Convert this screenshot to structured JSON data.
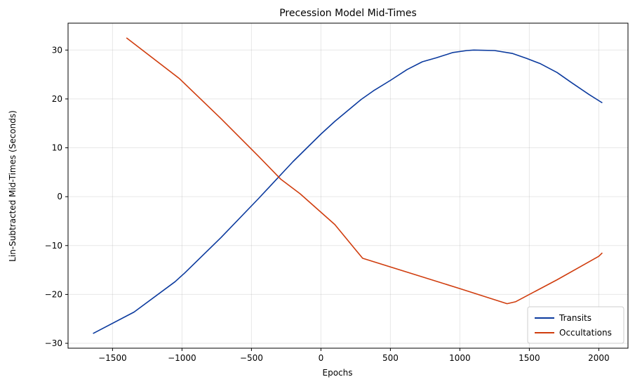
{
  "chart_data": {
    "type": "line",
    "title": "Precession Model Mid-Times",
    "xlabel": "Epochs",
    "ylabel": "Lin-Subtracted Mid-Times (Seconds)",
    "xlim": [
      -1820,
      2210
    ],
    "ylim": [
      -31,
      35.5
    ],
    "xticks": [
      -1500,
      -1000,
      -500,
      0,
      500,
      1000,
      1500,
      2000
    ],
    "yticks": [
      -30,
      -20,
      -10,
      0,
      10,
      20,
      30
    ],
    "xtick_labels": [
      "−1500",
      "−1000",
      "−500",
      "0",
      "500",
      "1000",
      "1500",
      "2000"
    ],
    "ytick_labels": [
      "−30",
      "−20",
      "−10",
      "0",
      "10",
      "20",
      "30"
    ],
    "grid": true,
    "legend_position": "lower-right",
    "series": [
      {
        "name": "Transits",
        "color": "#0b3a9e",
        "x": [
          -1640,
          -1345,
          -1050,
          -980,
          -720,
          -450,
          -200,
          0,
          100,
          290,
          380,
          500,
          620,
          730,
          830,
          950,
          1050,
          1100,
          1250,
          1380,
          1480,
          1580,
          1700,
          1800,
          1930,
          2025
        ],
        "y": [
          -28.0,
          -23.6,
          -17.4,
          -15.6,
          -8.4,
          -0.4,
          7.2,
          12.8,
          15.4,
          19.9,
          21.7,
          23.8,
          26.0,
          27.6,
          28.4,
          29.5,
          29.9,
          30.0,
          29.9,
          29.3,
          28.3,
          27.2,
          25.4,
          23.4,
          20.9,
          19.2
        ]
      },
      {
        "name": "Occultations",
        "color": "#d03d0e",
        "x": [
          -1400,
          -1020,
          -720,
          -450,
          -290,
          -150,
          100,
          300,
          650,
          1000,
          1340,
          1400,
          1700,
          2000,
          2025
        ],
        "y": [
          32.5,
          24.2,
          16.0,
          8.3,
          3.6,
          0.6,
          -5.7,
          -12.6,
          -15.7,
          -18.8,
          -21.9,
          -21.5,
          -17.0,
          -12.2,
          -11.5
        ]
      }
    ]
  }
}
